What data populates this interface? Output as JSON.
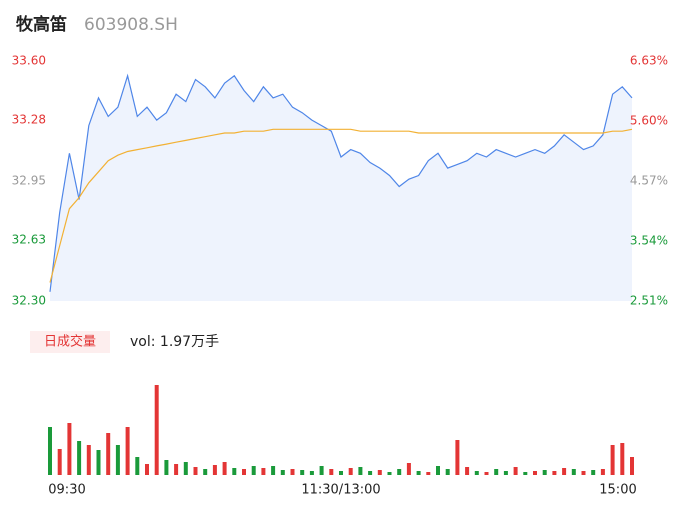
{
  "chart_data": [
    {
      "type": "line",
      "title": "牧高笛",
      "subtitle": "603908.SH",
      "x": [
        0,
        4,
        8,
        12,
        16,
        20,
        24,
        28,
        32,
        36,
        40,
        44,
        48,
        52,
        56,
        60,
        64,
        68,
        72,
        76,
        80,
        84,
        88,
        92,
        96,
        100,
        104,
        108,
        112,
        116,
        120,
        124,
        128,
        132,
        136,
        140,
        144,
        148,
        152,
        156,
        160,
        164,
        168,
        172,
        176,
        180,
        184,
        188,
        192,
        196,
        200,
        204,
        208,
        212,
        216,
        220,
        224,
        228,
        232,
        236,
        240
      ],
      "xlim": [
        0,
        240
      ],
      "ylim": [
        32.3,
        33.6
      ],
      "yticks": [
        {
          "value": 32.3,
          "label": "32.30"
        },
        32.63,
        32.95,
        33.28,
        {
          "value": 33.6,
          "label": "33.60"
        }
      ],
      "y2lim": [
        2.51,
        6.63
      ],
      "y2ticks": [
        {
          "value": 2.51,
          "label": "2.51%"
        },
        {
          "value": 3.54,
          "label": "3.54%"
        },
        {
          "value": 4.57,
          "label": "4.57%"
        },
        {
          "value": 5.6,
          "label": "5.60%"
        },
        {
          "value": 6.63,
          "label": "6.63%"
        }
      ],
      "tick_colors": [
        "#1a9a3a",
        "#1a9a3a",
        "#999999",
        "#e33535",
        "#e33535"
      ],
      "series": [
        {
          "color": "#4f86e8",
          "fill": "#eef3fd",
          "values": [
            32.35,
            32.78,
            33.1,
            32.85,
            33.25,
            33.4,
            33.3,
            33.35,
            33.52,
            33.3,
            33.35,
            33.28,
            33.32,
            33.42,
            33.38,
            33.5,
            33.46,
            33.4,
            33.48,
            33.52,
            33.44,
            33.38,
            33.46,
            33.4,
            33.42,
            33.35,
            33.32,
            33.28,
            33.25,
            33.22,
            33.08,
            33.12,
            33.1,
            33.05,
            33.02,
            32.98,
            32.92,
            32.96,
            32.98,
            33.06,
            33.1,
            33.02,
            33.04,
            33.06,
            33.1,
            33.08,
            33.12,
            33.1,
            33.08,
            33.1,
            33.12,
            33.1,
            33.14,
            33.2,
            33.16,
            33.12,
            33.14,
            33.2,
            33.42,
            33.46,
            33.4
          ]
        },
        {
          "color": "#f2b134",
          "values": [
            32.4,
            32.6,
            32.8,
            32.86,
            32.94,
            33.0,
            33.06,
            33.09,
            33.11,
            33.12,
            33.13,
            33.14,
            33.15,
            33.16,
            33.17,
            33.18,
            33.19,
            33.2,
            33.21,
            33.21,
            33.22,
            33.22,
            33.22,
            33.23,
            33.23,
            33.23,
            33.23,
            33.23,
            33.23,
            33.23,
            33.23,
            33.23,
            33.22,
            33.22,
            33.22,
            33.22,
            33.22,
            33.22,
            33.21,
            33.21,
            33.21,
            33.21,
            33.21,
            33.21,
            33.21,
            33.21,
            33.21,
            33.21,
            33.21,
            33.21,
            33.21,
            33.21,
            33.21,
            33.21,
            33.21,
            33.21,
            33.21,
            33.21,
            33.22,
            33.22,
            33.23
          ]
        }
      ]
    },
    {
      "type": "bar",
      "title": "日成交量",
      "annotation": "vol: 1.97万手",
      "x": [
        0,
        4,
        8,
        12,
        16,
        20,
        24,
        28,
        32,
        36,
        40,
        44,
        48,
        52,
        56,
        60,
        64,
        68,
        72,
        76,
        80,
        84,
        88,
        92,
        96,
        100,
        104,
        108,
        112,
        116,
        120,
        124,
        128,
        132,
        136,
        140,
        144,
        148,
        152,
        156,
        160,
        164,
        168,
        172,
        176,
        180,
        184,
        188,
        192,
        196,
        200,
        204,
        208,
        212,
        216,
        220,
        224,
        228,
        232,
        236,
        240
      ],
      "xlim": [
        0,
        240
      ],
      "xticks": [
        {
          "value": 0,
          "label": "09:30"
        },
        {
          "value": 120,
          "label": "11:30/13:00"
        },
        {
          "value": 240,
          "label": "15:00"
        }
      ],
      "ylim": [
        0,
        1000
      ],
      "values": [
        480,
        260,
        520,
        340,
        300,
        250,
        420,
        300,
        480,
        180,
        110,
        900,
        150,
        110,
        130,
        80,
        60,
        100,
        130,
        70,
        60,
        90,
        70,
        90,
        50,
        60,
        50,
        40,
        90,
        60,
        40,
        70,
        80,
        40,
        50,
        30,
        60,
        120,
        40,
        30,
        90,
        60,
        350,
        80,
        40,
        30,
        60,
        40,
        80,
        30,
        40,
        50,
        40,
        70,
        60,
        40,
        50,
        60,
        300,
        320,
        180
      ],
      "colors": [
        "#1a9a3a",
        "#e33535",
        "#e33535",
        "#1a9a3a",
        "#e33535",
        "#1a9a3a",
        "#e33535",
        "#1a9a3a",
        "#e33535",
        "#1a9a3a",
        "#e33535",
        "#e33535",
        "#1a9a3a",
        "#e33535",
        "#1a9a3a",
        "#e33535",
        "#1a9a3a",
        "#e33535",
        "#e33535",
        "#1a9a3a",
        "#e33535",
        "#1a9a3a",
        "#e33535",
        "#1a9a3a",
        "#1a9a3a",
        "#e33535",
        "#1a9a3a",
        "#1a9a3a",
        "#1a9a3a",
        "#e33535",
        "#1a9a3a",
        "#e33535",
        "#1a9a3a",
        "#1a9a3a",
        "#e33535",
        "#1a9a3a",
        "#1a9a3a",
        "#e33535",
        "#1a9a3a",
        "#e33535",
        "#1a9a3a",
        "#1a9a3a",
        "#e33535",
        "#e33535",
        "#1a9a3a",
        "#e33535",
        "#1a9a3a",
        "#1a9a3a",
        "#e33535",
        "#1a9a3a",
        "#e33535",
        "#1a9a3a",
        "#e33535",
        "#e33535",
        "#1a9a3a",
        "#e33535",
        "#1a9a3a",
        "#e33535",
        "#e33535",
        "#e33535",
        "#e33535"
      ]
    }
  ]
}
